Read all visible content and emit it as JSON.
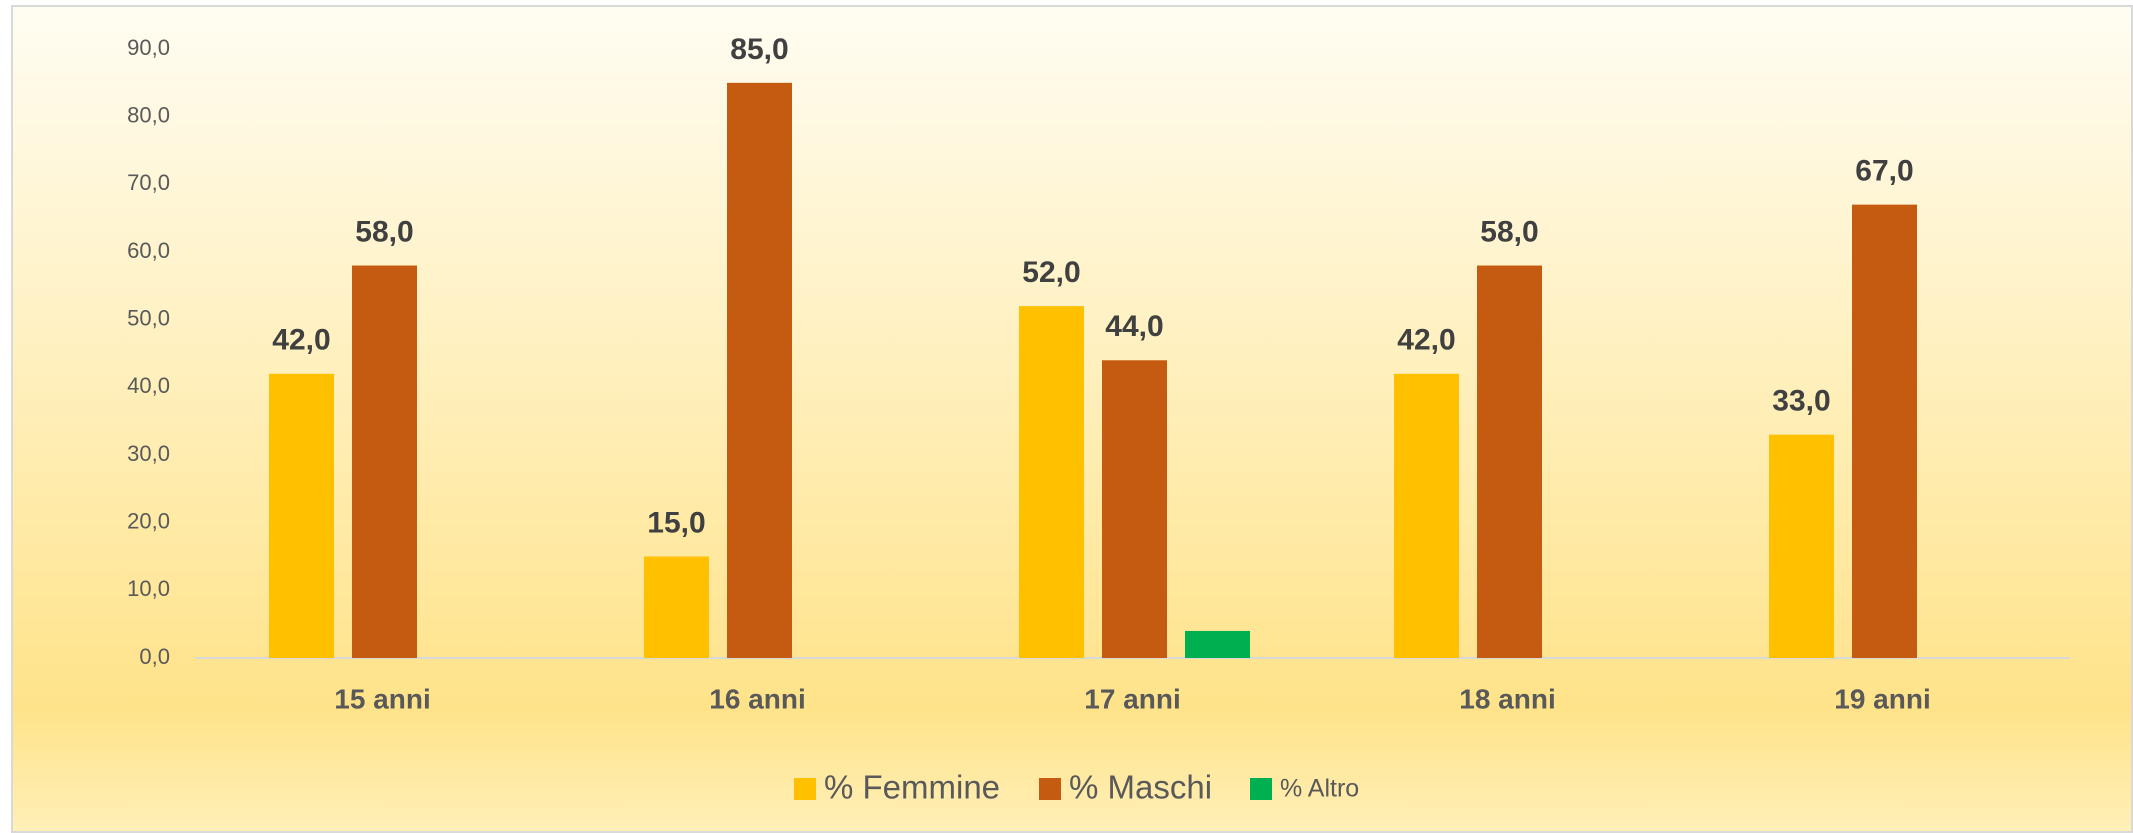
{
  "chart_data": {
    "type": "bar",
    "categories": [
      "15 anni",
      "16 anni",
      "17 anni",
      "18 anni",
      "19 anni"
    ],
    "series": [
      {
        "name": "% Femmine",
        "color": "#ffc000",
        "values": [
          42,
          15,
          52,
          42,
          33
        ],
        "value_labels": [
          "42,0",
          "15,0",
          "52,0",
          "42,0",
          "33,0"
        ]
      },
      {
        "name": "% Maschi",
        "color": "#c55a11",
        "values": [
          58,
          85,
          44,
          58,
          67
        ],
        "value_labels": [
          "58,0",
          "85,0",
          "44,0",
          "58,0",
          "67,0"
        ]
      },
      {
        "name": "% Altro",
        "color": "#00b050",
        "values": [
          null,
          null,
          4,
          null,
          null
        ]
      }
    ],
    "ylim": [
      0,
      90
    ],
    "yticks": [
      {
        "value": 0,
        "label": "0,0"
      },
      {
        "value": 10,
        "label": "10,0"
      },
      {
        "value": 20,
        "label": "20,0"
      },
      {
        "value": 30,
        "label": "30,0"
      },
      {
        "value": 40,
        "label": "40,0"
      },
      {
        "value": 50,
        "label": "50,0"
      },
      {
        "value": 60,
        "label": "60,0"
      },
      {
        "value": 70,
        "label": "70,0"
      },
      {
        "value": 80,
        "label": "80,0"
      },
      {
        "value": 90,
        "label": "90,0"
      }
    ],
    "grid": false,
    "legend": "bottom"
  }
}
